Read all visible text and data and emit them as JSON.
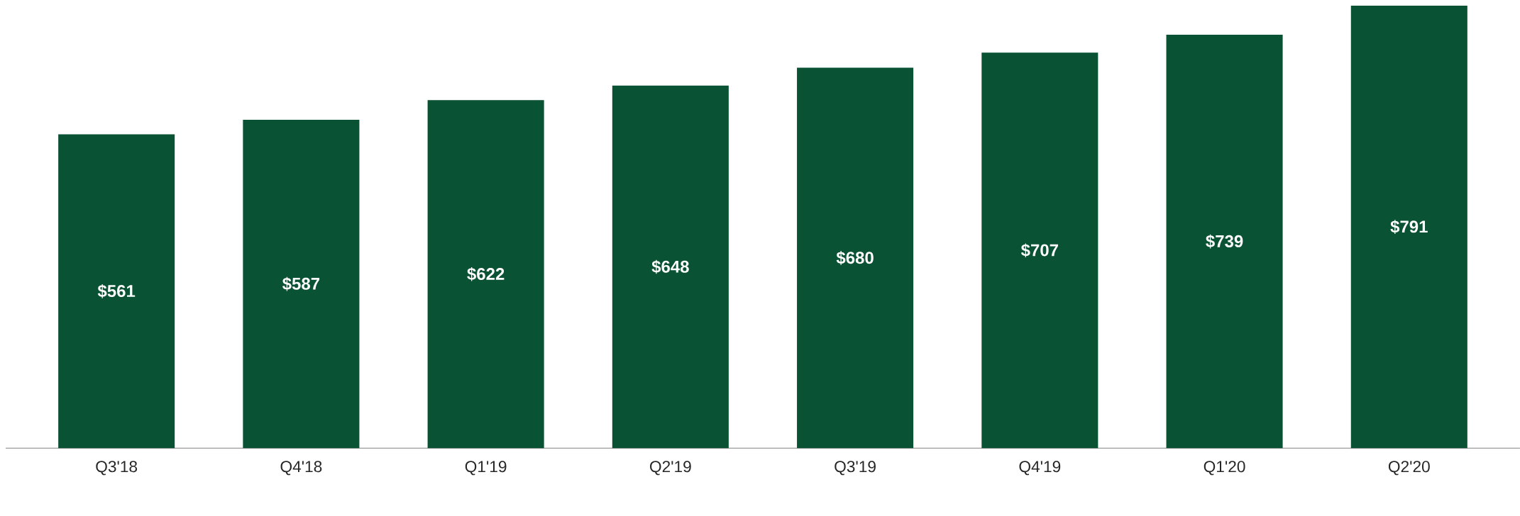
{
  "chart_data": {
    "type": "bar",
    "categories": [
      "Q3'18",
      "Q4'18",
      "Q1'19",
      "Q2'19",
      "Q3'19",
      "Q4'19",
      "Q1'20",
      "Q2'20"
    ],
    "values": [
      561,
      587,
      622,
      648,
      680,
      707,
      739,
      791
    ],
    "value_labels": [
      "$561",
      "$587",
      "$622",
      "$648",
      "$680",
      "$707",
      "$739",
      "$791"
    ],
    "color": "#0a5234"
  }
}
